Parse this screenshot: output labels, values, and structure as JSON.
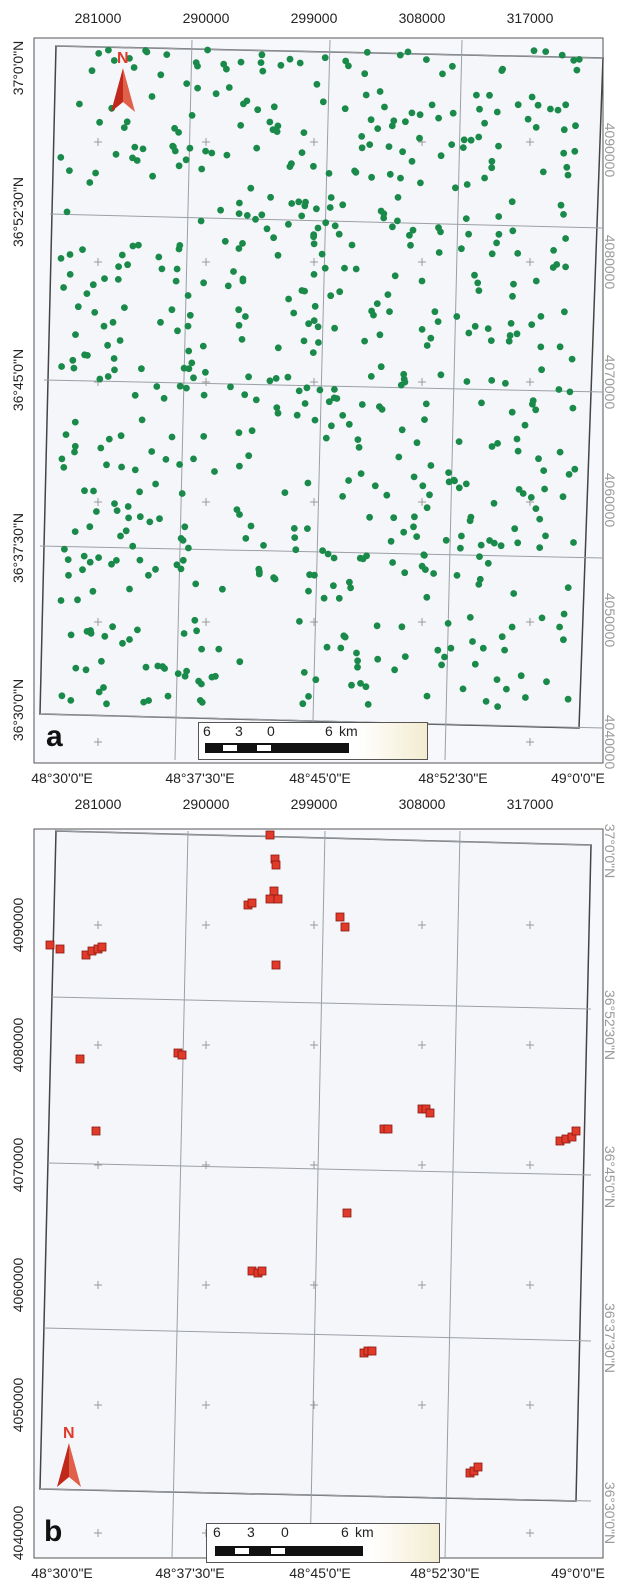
{
  "panel_a": {
    "letter": "a",
    "top_labels": [
      "281000",
      "290000",
      "299000",
      "308000",
      "317000"
    ],
    "bottom_labels": [
      "48°30'0\"E",
      "48°37'30\"E",
      "48°45'0\"E",
      "48°52'30\"E",
      "49°0'0\"E"
    ],
    "left_labels": [
      "37°0'0\"N",
      "36°52'30\"N",
      "36°45'0\"N",
      "36°37'30\"N",
      "36°30'0\"N"
    ],
    "right_labels": [
      "4090000",
      "4080000",
      "4070000",
      "4060000",
      "4050000",
      "4040000"
    ],
    "north": "N",
    "scale": {
      "ticks": [
        "6",
        "3",
        "0",
        "6"
      ],
      "unit": "km"
    },
    "point_color": "#1a8a4a",
    "point_shape": "circle"
  },
  "panel_b": {
    "letter": "b",
    "top_labels": [
      "281000",
      "290000",
      "299000",
      "308000",
      "317000"
    ],
    "bottom_labels": [
      "48°30'0\"E",
      "48°37'30\"E",
      "48°45'0\"E",
      "48°52'30\"E",
      "49°0'0\"E"
    ],
    "left_labels": [
      "4090000",
      "4080000",
      "4070000",
      "4060000",
      "4050000",
      "4040000"
    ],
    "right_labels": [
      "37°0'0\"N",
      "36°52'30\"N",
      "36°45'0\"N",
      "36°37'30\"N",
      "36°30'0\"N"
    ],
    "north": "N",
    "scale": {
      "ticks": [
        "6",
        "3",
        "0",
        "6"
      ],
      "unit": "km"
    },
    "point_color": "#e03a2a",
    "point_shape": "square"
  }
}
